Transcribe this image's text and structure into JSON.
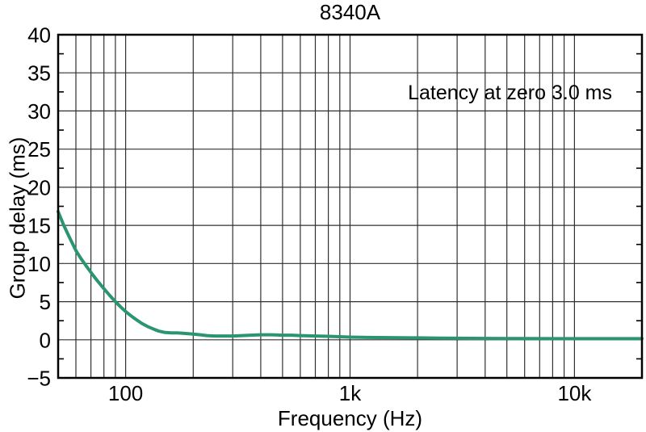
{
  "chart_data": {
    "type": "line",
    "title": "8340A",
    "xlabel": "Frequency (Hz)",
    "ylabel": "Group delay (ms)",
    "annotation": "Latency at zero 3.0 ms",
    "annotation_position": "top-right",
    "x_scale": "log",
    "xlim": [
      50,
      20000
    ],
    "ylim": [
      -5,
      40
    ],
    "grid": true,
    "legend": false,
    "background_color": "#ffffff",
    "grid_color": "#303030",
    "border_color": "#000000",
    "x_ticks": [
      {
        "value": 100,
        "label": "100"
      },
      {
        "value": 1000,
        "label": "1k"
      },
      {
        "value": 10000,
        "label": "10k"
      }
    ],
    "y_ticks": [
      {
        "value": 40,
        "label": "40"
      },
      {
        "value": 35,
        "label": "35"
      },
      {
        "value": 30,
        "label": "30"
      },
      {
        "value": 25,
        "label": "25"
      },
      {
        "value": 20,
        "label": "20"
      },
      {
        "value": 15,
        "label": "15"
      },
      {
        "value": 10,
        "label": "10"
      },
      {
        "value": 5,
        "label": "5"
      },
      {
        "value": 0,
        "label": "0"
      },
      {
        "value": -5,
        "label": "−5"
      }
    ],
    "x_gridlines": [
      60,
      70,
      80,
      90,
      100,
      200,
      300,
      400,
      500,
      600,
      700,
      800,
      900,
      1000,
      2000,
      3000,
      4000,
      5000,
      6000,
      7000,
      8000,
      9000,
      10000
    ],
    "y_gridlines": [
      0,
      5,
      10,
      15,
      20,
      25,
      30,
      35
    ],
    "y_minor_ticks": [
      -2.5,
      2.5,
      7.5,
      12.5,
      17.5,
      22.5,
      27.5,
      32.5,
      37.5
    ],
    "series": [
      {
        "name": "group-delay",
        "color": "#2a9473",
        "points": [
          [
            50,
            16.8
          ],
          [
            53,
            15.0
          ],
          [
            56,
            13.5
          ],
          [
            60,
            11.7
          ],
          [
            63,
            10.7
          ],
          [
            67,
            9.6
          ],
          [
            71,
            8.6
          ],
          [
            75,
            7.7
          ],
          [
            80,
            6.7
          ],
          [
            85,
            5.8
          ],
          [
            90,
            5.0
          ],
          [
            95,
            4.3
          ],
          [
            100,
            3.7
          ],
          [
            106,
            3.1
          ],
          [
            112,
            2.6
          ],
          [
            118,
            2.15
          ],
          [
            125,
            1.75
          ],
          [
            132,
            1.45
          ],
          [
            140,
            1.15
          ],
          [
            150,
            0.95
          ],
          [
            160,
            0.9
          ],
          [
            170,
            0.9
          ],
          [
            180,
            0.85
          ],
          [
            190,
            0.8
          ],
          [
            200,
            0.75
          ],
          [
            215,
            0.65
          ],
          [
            230,
            0.55
          ],
          [
            250,
            0.5
          ],
          [
            270,
            0.5
          ],
          [
            300,
            0.5
          ],
          [
            330,
            0.55
          ],
          [
            360,
            0.6
          ],
          [
            400,
            0.65
          ],
          [
            450,
            0.65
          ],
          [
            500,
            0.6
          ],
          [
            550,
            0.6
          ],
          [
            600,
            0.55
          ],
          [
            700,
            0.5
          ],
          [
            800,
            0.45
          ],
          [
            900,
            0.4
          ],
          [
            1000,
            0.35
          ],
          [
            1200,
            0.3
          ],
          [
            1500,
            0.28
          ],
          [
            2000,
            0.25
          ],
          [
            2500,
            0.22
          ],
          [
            3000,
            0.2
          ],
          [
            4000,
            0.18
          ],
          [
            5000,
            0.17
          ],
          [
            6000,
            0.16
          ],
          [
            8000,
            0.15
          ],
          [
            10000,
            0.15
          ],
          [
            13000,
            0.15
          ],
          [
            16000,
            0.15
          ],
          [
            20000,
            0.15
          ]
        ]
      }
    ]
  }
}
